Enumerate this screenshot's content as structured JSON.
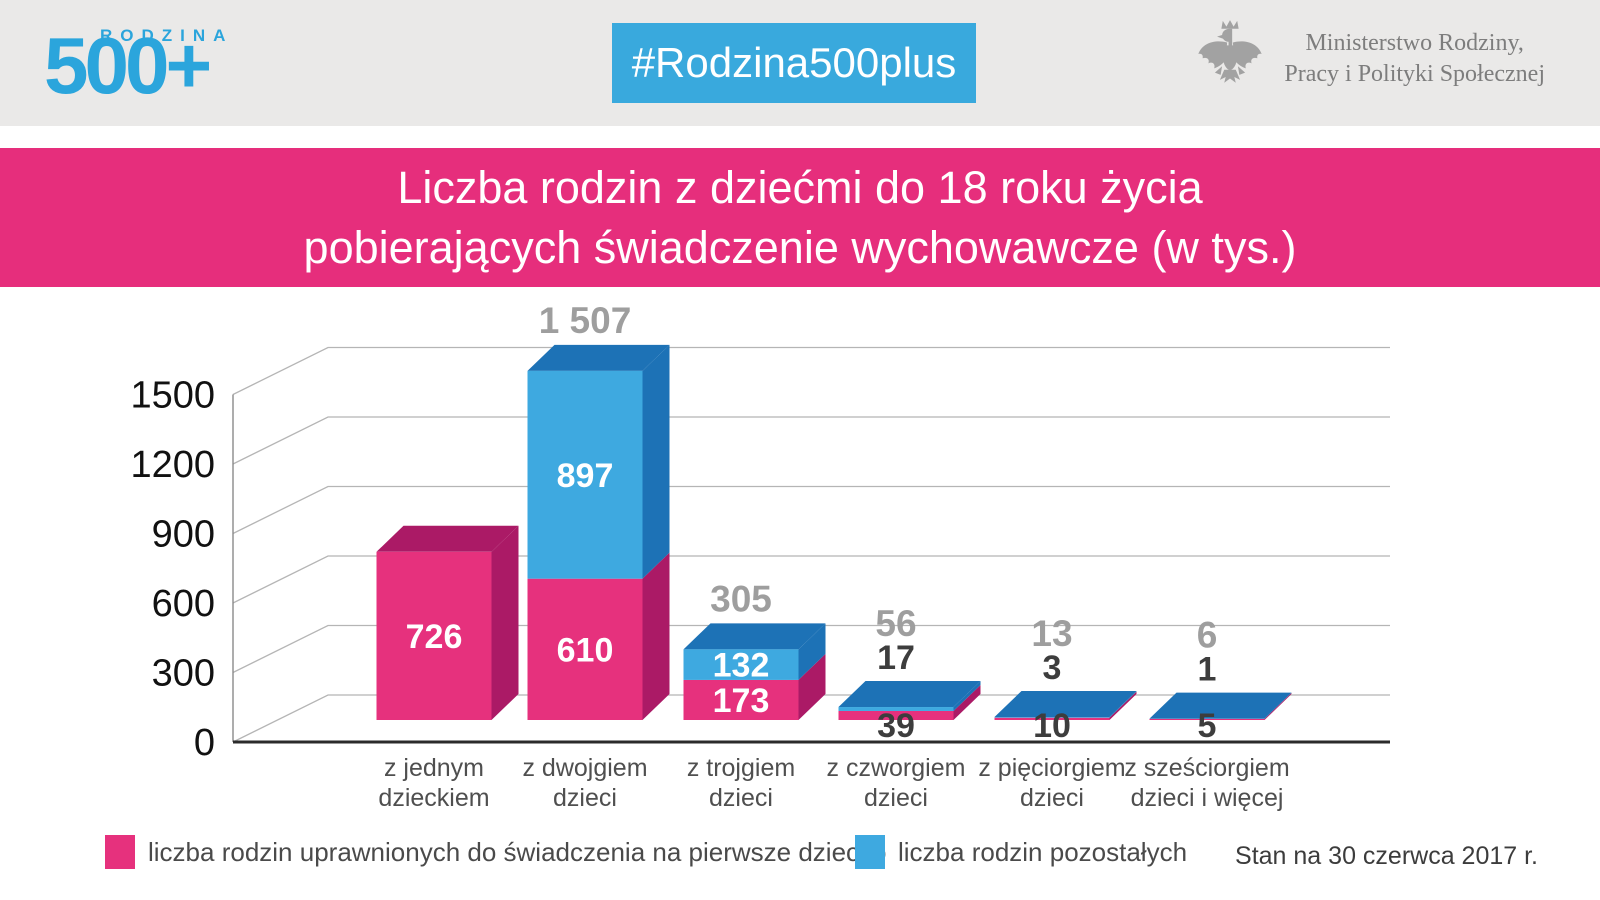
{
  "header": {
    "logo_number": "500+",
    "logo_word": "RODZINA",
    "hashtag": "#Rodzina500plus",
    "ministry_line1": "Ministerstwo Rodziny,",
    "ministry_line2": "Pracy i Polityki Społecznej"
  },
  "title": {
    "line1": "Liczba rodzin z dziećmi do 18 roku życia",
    "line2": "pobierających świadczenie wychowawcze (w tys.)"
  },
  "chart_data": {
    "type": "bar",
    "variant": "3d-stacked",
    "title": "Liczba rodzin z dziećmi do 18 roku życia pobierających świadczenie wychowawcze (w tys.)",
    "unit": "tys.",
    "grid": true,
    "legend_position": "bottom",
    "yticks": [
      0,
      300,
      600,
      900,
      1200,
      1500
    ],
    "ylim": [
      0,
      1550
    ],
    "categories": [
      {
        "line1": "z jednym",
        "line2": "dzieckiem"
      },
      {
        "line1": "z dwojgiem",
        "line2": "dzieci"
      },
      {
        "line1": "z trojgiem",
        "line2": "dzieci"
      },
      {
        "line1": "z czworgiem",
        "line2": "dzieci"
      },
      {
        "line1": "z pięciorgiem",
        "line2": "dzieci"
      },
      {
        "line1": "z sześciorgiem",
        "line2": "dzieci i więcej"
      }
    ],
    "series": [
      {
        "name": "liczba rodzin uprawnionych do świadczenia na pierwsze dziecko",
        "color": "#e6317d",
        "dark": "#ab1a66",
        "values": [
          726,
          610,
          173,
          39,
          10,
          5
        ]
      },
      {
        "name": "liczba rodzin pozostałych",
        "color": "#3ea9e0",
        "dark": "#1d72b6",
        "values": [
          0,
          897,
          132,
          17,
          3,
          1
        ]
      }
    ],
    "totals": [
      "",
      "1 507",
      "305",
      "56",
      "13",
      "6"
    ]
  },
  "footer": {
    "status_date": "Stan na 30 czerwca 2017 r."
  }
}
